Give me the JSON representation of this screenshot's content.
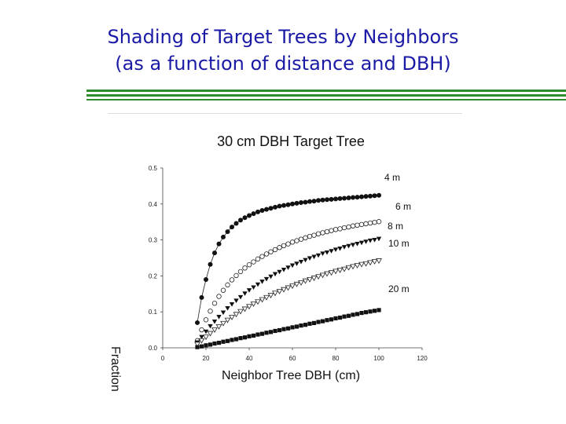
{
  "slide": {
    "title_line1": "Shading of Target Trees by Neighbors",
    "title_line2": "(as a function of distance and DBH)",
    "colors": {
      "title": "#1a1aa6",
      "rule": "#2e8b2e"
    }
  },
  "chart_data": {
    "type": "scatter",
    "title": "30 cm DBH Target Tree",
    "xlabel": "Neighbor Tree DBH (cm)",
    "ylabel": "Fraction",
    "xlim": [
      0,
      120
    ],
    "ylim": [
      0,
      0.5
    ],
    "xticks": [
      "0",
      "20",
      "40",
      "60",
      "80",
      "100",
      "120"
    ],
    "yticks": [
      "0.0",
      "0.1",
      "0.2",
      "0.3",
      "0.4",
      "0.5"
    ],
    "grid": false,
    "legend": "none",
    "series": [
      {
        "name": "4 m",
        "marker": "filled-circle",
        "connected": true,
        "x": [
          16,
          18,
          20,
          22,
          24,
          26,
          28,
          30,
          32,
          34,
          36,
          38,
          40,
          42,
          44,
          46,
          48,
          50,
          52,
          54,
          56,
          58,
          60,
          62,
          64,
          66,
          68,
          70,
          72,
          74,
          76,
          78,
          80,
          82,
          84,
          86,
          88,
          90,
          92,
          94,
          96,
          98,
          100
        ],
        "y": [
          0.07,
          0.14,
          0.19,
          0.232,
          0.264,
          0.289,
          0.308,
          0.323,
          0.336,
          0.346,
          0.355,
          0.362,
          0.368,
          0.373,
          0.378,
          0.382,
          0.385,
          0.388,
          0.391,
          0.394,
          0.396,
          0.398,
          0.4,
          0.402,
          0.404,
          0.405,
          0.407,
          0.408,
          0.41,
          0.411,
          0.412,
          0.413,
          0.414,
          0.415,
          0.416,
          0.417,
          0.418,
          0.419,
          0.42,
          0.421,
          0.422,
          0.423,
          0.424
        ]
      },
      {
        "name": "6 m",
        "marker": "open-circle",
        "connected": false,
        "x": [
          16,
          18,
          20,
          22,
          24,
          26,
          28,
          30,
          32,
          34,
          36,
          38,
          40,
          42,
          44,
          46,
          48,
          50,
          52,
          54,
          56,
          58,
          60,
          62,
          64,
          66,
          68,
          70,
          72,
          74,
          76,
          78,
          80,
          82,
          84,
          86,
          88,
          90,
          92,
          94,
          96,
          98,
          100
        ],
        "y": [
          0.02,
          0.05,
          0.078,
          0.102,
          0.124,
          0.143,
          0.16,
          0.175,
          0.189,
          0.201,
          0.212,
          0.222,
          0.231,
          0.239,
          0.247,
          0.254,
          0.261,
          0.267,
          0.273,
          0.279,
          0.284,
          0.289,
          0.294,
          0.298,
          0.302,
          0.306,
          0.31,
          0.313,
          0.317,
          0.32,
          0.323,
          0.326,
          0.329,
          0.331,
          0.334,
          0.336,
          0.339,
          0.341,
          0.343,
          0.345,
          0.347,
          0.349,
          0.351
        ]
      },
      {
        "name": "8 m",
        "marker": "filled-triangle-down",
        "connected": false,
        "x": [
          16,
          18,
          20,
          22,
          24,
          26,
          28,
          30,
          32,
          34,
          36,
          38,
          40,
          42,
          44,
          46,
          48,
          50,
          52,
          54,
          56,
          58,
          60,
          62,
          64,
          66,
          68,
          70,
          72,
          74,
          76,
          78,
          80,
          82,
          84,
          86,
          88,
          90,
          92,
          94,
          96,
          98,
          100
        ],
        "y": [
          0.015,
          0.03,
          0.045,
          0.06,
          0.073,
          0.086,
          0.098,
          0.11,
          0.121,
          0.131,
          0.141,
          0.151,
          0.16,
          0.168,
          0.176,
          0.184,
          0.191,
          0.198,
          0.205,
          0.211,
          0.217,
          0.223,
          0.229,
          0.234,
          0.239,
          0.244,
          0.249,
          0.253,
          0.257,
          0.262,
          0.265,
          0.269,
          0.273,
          0.276,
          0.28,
          0.283,
          0.286,
          0.289,
          0.292,
          0.295,
          0.298,
          0.3,
          0.303
        ]
      },
      {
        "name": "10 m",
        "marker": "open-triangle-down",
        "connected": false,
        "x": [
          16,
          18,
          20,
          22,
          24,
          26,
          28,
          30,
          32,
          34,
          36,
          38,
          40,
          42,
          44,
          46,
          48,
          50,
          52,
          54,
          56,
          58,
          60,
          62,
          64,
          66,
          68,
          70,
          72,
          74,
          76,
          78,
          80,
          82,
          84,
          86,
          88,
          90,
          92,
          94,
          96,
          98,
          100
        ],
        "y": [
          0.01,
          0.02,
          0.03,
          0.04,
          0.05,
          0.059,
          0.068,
          0.077,
          0.085,
          0.093,
          0.101,
          0.108,
          0.115,
          0.122,
          0.128,
          0.134,
          0.14,
          0.146,
          0.152,
          0.157,
          0.162,
          0.167,
          0.172,
          0.177,
          0.181,
          0.186,
          0.19,
          0.194,
          0.198,
          0.202,
          0.206,
          0.209,
          0.213,
          0.216,
          0.219,
          0.223,
          0.226,
          0.229,
          0.232,
          0.234,
          0.237,
          0.24,
          0.242
        ]
      },
      {
        "name": "20 m",
        "marker": "filled-square",
        "connected": false,
        "x": [
          16,
          18,
          20,
          22,
          24,
          26,
          28,
          30,
          32,
          34,
          36,
          38,
          40,
          42,
          44,
          46,
          48,
          50,
          52,
          54,
          56,
          58,
          60,
          62,
          64,
          66,
          68,
          70,
          72,
          74,
          76,
          78,
          80,
          82,
          84,
          86,
          88,
          90,
          92,
          94,
          96,
          98,
          100
        ],
        "y": [
          0.002,
          0.004,
          0.007,
          0.009,
          0.012,
          0.014,
          0.017,
          0.019,
          0.022,
          0.024,
          0.027,
          0.029,
          0.032,
          0.034,
          0.037,
          0.039,
          0.042,
          0.044,
          0.047,
          0.049,
          0.052,
          0.054,
          0.057,
          0.059,
          0.062,
          0.064,
          0.067,
          0.069,
          0.072,
          0.074,
          0.077,
          0.079,
          0.082,
          0.084,
          0.087,
          0.089,
          0.092,
          0.094,
          0.097,
          0.099,
          0.101,
          0.103,
          0.105
        ]
      }
    ]
  }
}
